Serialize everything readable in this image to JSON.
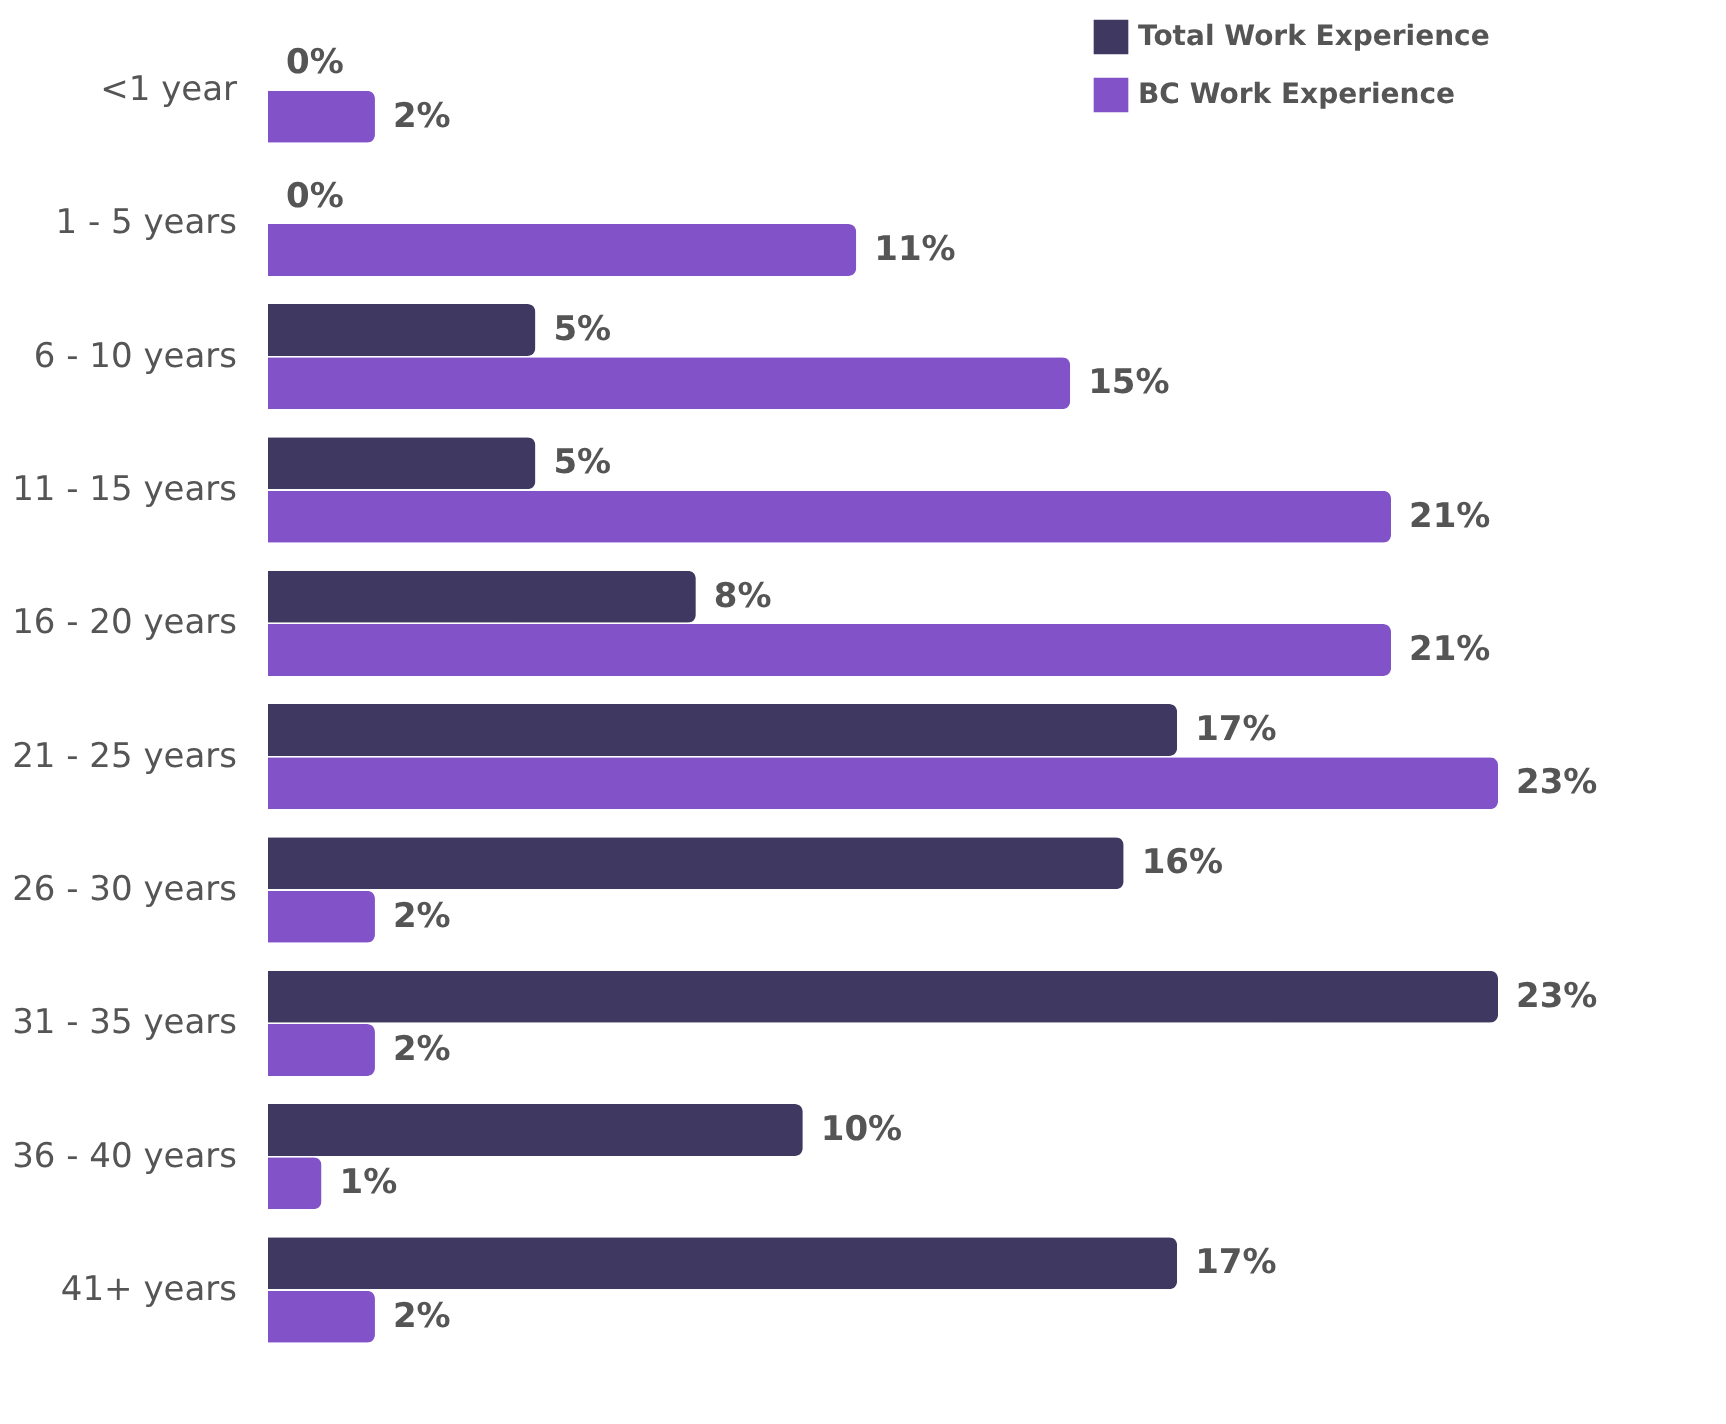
{
  "chart_data": {
    "type": "bar",
    "orientation": "horizontal",
    "legend": "top right",
    "categories": [
      "<1 year",
      "1 - 5 years",
      "6 - 10 years",
      "11 - 15 years",
      "16 - 20 years",
      "21 - 25 years",
      "26 - 30 years",
      "31 - 35 years",
      "36 - 40 years",
      "41+ years"
    ],
    "series": [
      {
        "name": "Total Work Experience",
        "color": "#3f3860",
        "values": [
          0,
          0,
          5,
          5,
          8,
          17,
          16,
          23,
          10,
          17
        ],
        "value_labels": [
          "0%",
          "0%",
          "5%",
          "5%",
          "8%",
          "17%",
          "16%",
          "23%",
          "10%",
          "17%"
        ]
      },
      {
        "name": "BC Work Experience",
        "color": "#8152c8",
        "values": [
          2,
          11,
          15,
          21,
          21,
          23,
          2,
          2,
          1,
          2
        ],
        "value_labels": [
          "2%",
          "11%",
          "15%",
          "21%",
          "21%",
          "23%",
          "2%",
          "2%",
          "1%",
          "2%"
        ]
      }
    ]
  }
}
